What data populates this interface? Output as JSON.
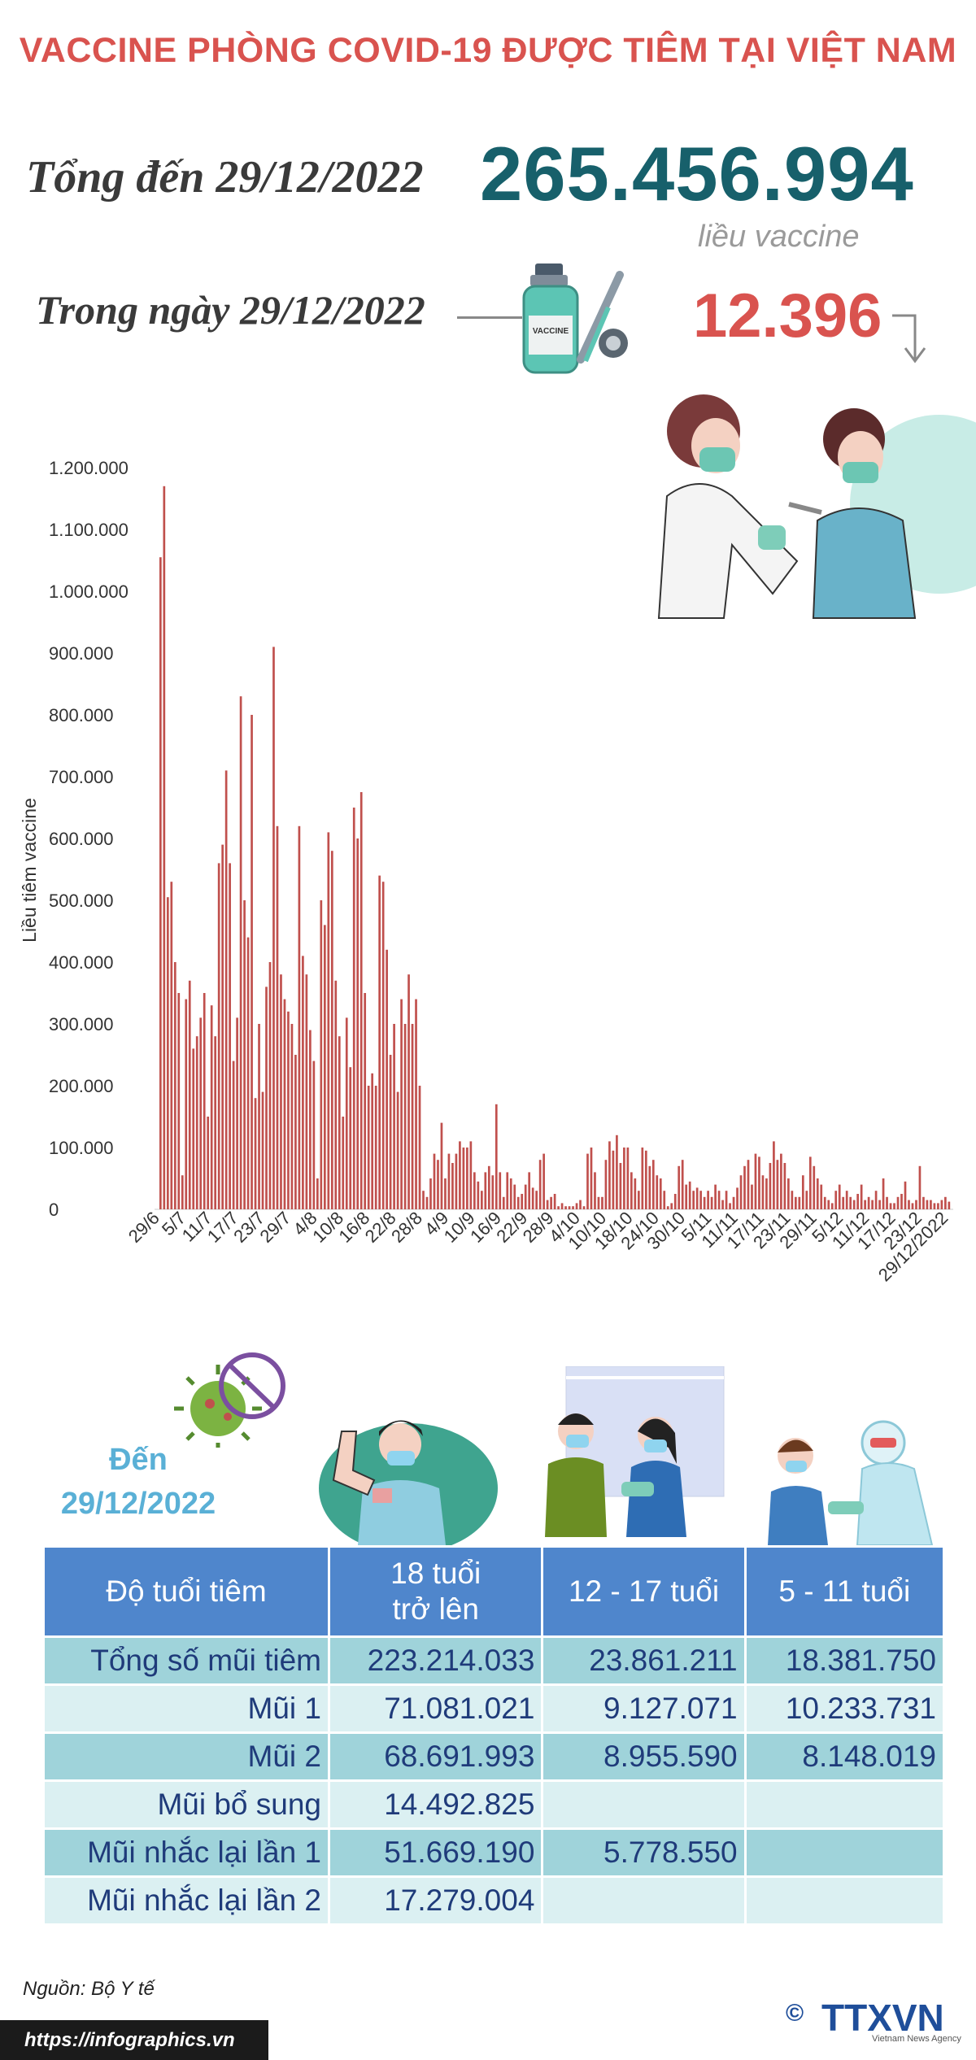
{
  "header": {
    "title": "VACCINE PHÒNG COVID-19 ĐƯỢC TIÊM TẠI VIỆT NAM",
    "total_label": "Tổng đến 29/12/2022",
    "total_value": "265.456.994",
    "unit_label": "liều vaccine",
    "today_label": "Trong ngày 29/12/2022",
    "today_value": "12.396"
  },
  "vial_text": "VACCINE",
  "chart_data": {
    "type": "bar",
    "ylabel": "Liều tiêm vaccine",
    "ylim": [
      0,
      1200000
    ],
    "y_ticks": [
      "0",
      "100.000",
      "200.000",
      "300.000",
      "400.000",
      "500.000",
      "600.000",
      "700.000",
      "800.000",
      "900.000",
      "1.000.000",
      "1.100.000",
      "1.200.000"
    ],
    "x_tick_labels": [
      "29/6",
      "5/7",
      "11/7",
      "17/7",
      "23/7",
      "29/7",
      "4/8",
      "10/8",
      "16/8",
      "22/8",
      "28/8",
      "4/9",
      "10/9",
      "16/9",
      "22/9",
      "28/9",
      "4/10",
      "10/10",
      "18/10",
      "24/10",
      "30/10",
      "5/11",
      "11/11",
      "17/11",
      "23/11",
      "29/11",
      "5/12",
      "11/12",
      "17/12",
      "23/12",
      "29/12/2022"
    ],
    "bar_color": "#c0504d",
    "values": [
      1055000,
      1170000,
      505000,
      530000,
      400000,
      350000,
      55000,
      340000,
      370000,
      260000,
      280000,
      310000,
      350000,
      150000,
      330000,
      280000,
      560000,
      590000,
      710000,
      560000,
      240000,
      310000,
      830000,
      500000,
      440000,
      800000,
      180000,
      300000,
      190000,
      360000,
      400000,
      910000,
      620000,
      380000,
      340000,
      320000,
      300000,
      250000,
      620000,
      410000,
      380000,
      290000,
      240000,
      50000,
      500000,
      460000,
      610000,
      580000,
      370000,
      280000,
      150000,
      310000,
      230000,
      650000,
      600000,
      675000,
      350000,
      200000,
      220000,
      200000,
      540000,
      530000,
      420000,
      250000,
      300000,
      190000,
      340000,
      300000,
      380000,
      300000,
      340000,
      200000,
      30000,
      20000,
      50000,
      90000,
      80000,
      140000,
      50000,
      90000,
      75000,
      90000,
      110000,
      100000,
      100000,
      110000,
      60000,
      45000,
      30000,
      60000,
      70000,
      55000,
      170000,
      60000,
      20000,
      60000,
      50000,
      40000,
      20000,
      25000,
      40000,
      60000,
      35000,
      30000,
      80000,
      90000,
      15000,
      20000,
      25000,
      5000,
      10000,
      5000,
      5000,
      5000,
      10000,
      15000,
      5000,
      90000,
      100000,
      60000,
      20000,
      20000,
      80000,
      110000,
      95000,
      120000,
      75000,
      100000,
      100000,
      60000,
      50000,
      30000,
      100000,
      95000,
      70000,
      80000,
      55000,
      50000,
      30000,
      5000,
      10000,
      25000,
      70000,
      80000,
      40000,
      45000,
      30000,
      35000,
      30000,
      20000,
      30000,
      20000,
      40000,
      30000,
      15000,
      30000,
      10000,
      20000,
      35000,
      55000,
      70000,
      80000,
      40000,
      90000,
      85000,
      55000,
      50000,
      75000,
      110000,
      80000,
      90000,
      75000,
      50000,
      30000,
      20000,
      20000,
      55000,
      30000,
      85000,
      70000,
      50000,
      40000,
      20000,
      15000,
      10000,
      30000,
      40000,
      20000,
      30000,
      20000,
      15000,
      25000,
      40000,
      15000,
      20000,
      15000,
      30000,
      15000,
      50000,
      20000,
      10000,
      10000,
      20000,
      25000,
      45000,
      15000,
      10000,
      15000,
      70000,
      20000,
      15000,
      15000,
      10000,
      10000,
      15000,
      20000,
      12396
    ]
  },
  "table": {
    "den_label": "Đến",
    "den_date": "29/12/2022",
    "headers": [
      "Độ tuổi tiêm",
      "18 tuổi",
      "trở lên",
      "12 - 17 tuổi",
      "5 - 11 tuổi"
    ],
    "rows": [
      {
        "label": "Tổng số mũi tiêm",
        "c1": "223.214.033",
        "c2": "23.861.211",
        "c3": "18.381.750"
      },
      {
        "label": "Mũi 1",
        "c1": "71.081.021",
        "c2": "9.127.071",
        "c3": "10.233.731"
      },
      {
        "label": "Mũi 2",
        "c1": "68.691.993",
        "c2": "8.955.590",
        "c3": "8.148.019"
      },
      {
        "label": "Mũi bổ sung",
        "c1": "14.492.825",
        "c2": "",
        "c3": ""
      },
      {
        "label": "Mũi nhắc lại lần 1",
        "c1": "51.669.190",
        "c2": "5.778.550",
        "c3": ""
      },
      {
        "label": "Mũi nhắc lại lần 2",
        "c1": "17.279.004",
        "c2": "",
        "c3": ""
      }
    ]
  },
  "footer": {
    "source": "Nguồn: Bộ Y tế",
    "url": "https://infographics.vn",
    "logo": "TTXVN",
    "logo_sub": "Vietnam News Agency"
  }
}
